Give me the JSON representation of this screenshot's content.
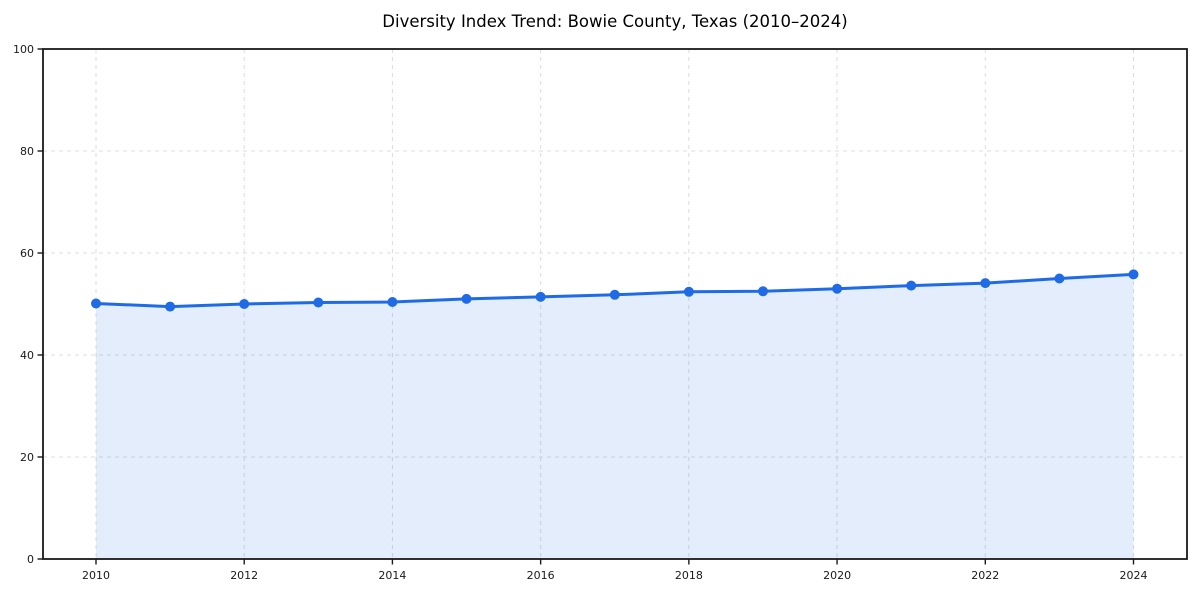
{
  "page": {
    "background_color": "#ffffff"
  },
  "chart_data": {
    "type": "line",
    "title": "Diversity Index Trend: Bowie County, Texas (2010–2024)",
    "xlabel": "",
    "ylabel": "",
    "x": [
      2010,
      2011,
      2012,
      2013,
      2014,
      2015,
      2016,
      2017,
      2018,
      2019,
      2020,
      2021,
      2022,
      2023,
      2024
    ],
    "values": [
      50.1,
      49.5,
      50.0,
      50.3,
      50.4,
      51.0,
      51.4,
      51.8,
      52.4,
      52.5,
      53.0,
      53.6,
      54.1,
      55.0,
      55.8
    ],
    "ylim": [
      0,
      100
    ],
    "yticks": [
      0,
      20,
      40,
      60,
      80,
      100
    ],
    "xticks": [
      2010,
      2012,
      2014,
      2016,
      2018,
      2020,
      2022,
      2024
    ],
    "grid": true,
    "grid_style": "dashed",
    "legend": false,
    "marker": "circle",
    "colors": {
      "line": "#1f6be6",
      "marker": "#1f6be6",
      "fill": "#1f6be6",
      "fill_opacity": 0.12,
      "grid": "#dcdcdc",
      "axis": "#1a1a1a",
      "tick_label": "#1a1a1a",
      "title": "#000000"
    }
  }
}
